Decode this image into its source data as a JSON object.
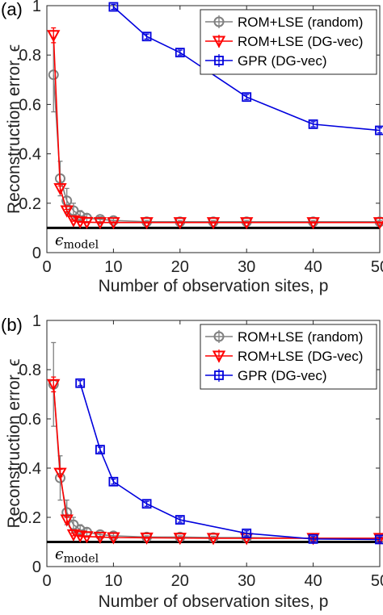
{
  "chart_data": [
    {
      "type": "line",
      "panel_label": "(a)",
      "xlabel": "Number of observation sites,  p",
      "ylabel": "Reconstruction error,  ϵ",
      "xlim": [
        0,
        50
      ],
      "ylim": [
        0,
        1
      ],
      "xticks": [
        "0",
        "10",
        "20",
        "30",
        "40",
        "50"
      ],
      "yticks": [
        "0",
        "0.2",
        "0.4",
        "0.6",
        "0.8",
        "1"
      ],
      "grid": false,
      "legend_position": "top-right",
      "reference_line": {
        "label": "ϵ",
        "subscript": "model",
        "value": 0.1
      },
      "series": [
        {
          "name": "ROM+LSE (random)",
          "color": "#808080",
          "marker": "circle",
          "x": [
            1,
            2,
            3,
            4,
            5,
            6,
            8,
            10,
            15,
            20,
            25,
            30,
            40,
            50
          ],
          "y": [
            0.72,
            0.3,
            0.21,
            0.17,
            0.15,
            0.14,
            0.135,
            0.13,
            0.125,
            0.125,
            0.125,
            0.125,
            0.125,
            0.125
          ],
          "err": [
            0.15,
            0.07,
            0.05,
            0.03,
            0.02,
            0.015,
            0.01,
            0.01,
            0.005,
            0.005,
            0.005,
            0.005,
            0.005,
            0.005
          ]
        },
        {
          "name": "ROM+LSE (DG-vec)",
          "color": "#ff0000",
          "marker": "triangle-down",
          "x": [
            1,
            2,
            3,
            4,
            5,
            6,
            8,
            10,
            15,
            20,
            25,
            30,
            40,
            50
          ],
          "y": [
            0.88,
            0.26,
            0.17,
            0.13,
            0.125,
            0.123,
            0.122,
            0.122,
            0.122,
            0.122,
            0.122,
            0.122,
            0.122,
            0.122
          ],
          "err": [
            0.03,
            0.01,
            0.005,
            0.003,
            0.002,
            0.002,
            0.002,
            0.002,
            0.002,
            0.002,
            0.002,
            0.002,
            0.002,
            0.002
          ]
        },
        {
          "name": "GPR (DG-vec)",
          "color": "#0000dd",
          "marker": "square",
          "x": [
            10,
            15,
            20,
            30,
            40,
            50
          ],
          "y": [
            0.995,
            0.875,
            0.81,
            0.63,
            0.52,
            0.495
          ],
          "err": [
            0.01,
            0.01,
            0.01,
            0.01,
            0.01,
            0.01
          ]
        }
      ]
    },
    {
      "type": "line",
      "panel_label": "(b)",
      "xlabel": "Number of observation sites,  p",
      "ylabel": "Reconstruction error,  ϵ",
      "xlim": [
        0,
        50
      ],
      "ylim": [
        0,
        1
      ],
      "xticks": [
        "0",
        "10",
        "20",
        "30",
        "40",
        "50"
      ],
      "yticks": [
        "0",
        "0.2",
        "0.4",
        "0.6",
        "0.8",
        "1"
      ],
      "grid": false,
      "legend_position": "top-right",
      "reference_line": {
        "label": "ϵ",
        "subscript": "model",
        "value": 0.1
      },
      "series": [
        {
          "name": "ROM+LSE (random)",
          "color": "#808080",
          "marker": "circle",
          "x": [
            1,
            2,
            3,
            4,
            5,
            6,
            8,
            10,
            15,
            20,
            25,
            30,
            40,
            50
          ],
          "y": [
            0.74,
            0.36,
            0.22,
            0.17,
            0.15,
            0.14,
            0.13,
            0.125,
            0.12,
            0.12,
            0.118,
            0.118,
            0.115,
            0.115
          ],
          "err": [
            0.17,
            0.09,
            0.05,
            0.03,
            0.02,
            0.015,
            0.01,
            0.01,
            0.005,
            0.005,
            0.005,
            0.005,
            0.005,
            0.005
          ]
        },
        {
          "name": "ROM+LSE (DG-vec)",
          "color": "#ff0000",
          "marker": "triangle-down",
          "x": [
            1,
            2,
            3,
            4,
            5,
            6,
            8,
            10,
            15,
            20,
            25,
            30,
            40,
            50
          ],
          "y": [
            0.74,
            0.38,
            0.19,
            0.13,
            0.125,
            0.122,
            0.12,
            0.118,
            0.117,
            0.116,
            0.115,
            0.115,
            0.115,
            0.115
          ],
          "err": [
            0.03,
            0.015,
            0.01,
            0.005,
            0.003,
            0.002,
            0.002,
            0.002,
            0.002,
            0.002,
            0.002,
            0.002,
            0.002,
            0.002
          ]
        },
        {
          "name": "GPR (DG-vec)",
          "color": "#0000dd",
          "marker": "square",
          "x": [
            5,
            8,
            10,
            15,
            20,
            30,
            40,
            50
          ],
          "y": [
            0.745,
            0.475,
            0.345,
            0.255,
            0.19,
            0.135,
            0.112,
            0.11
          ],
          "err": [
            0.01,
            0.01,
            0.01,
            0.01,
            0.01,
            0.01,
            0.01,
            0.01
          ]
        }
      ]
    }
  ]
}
